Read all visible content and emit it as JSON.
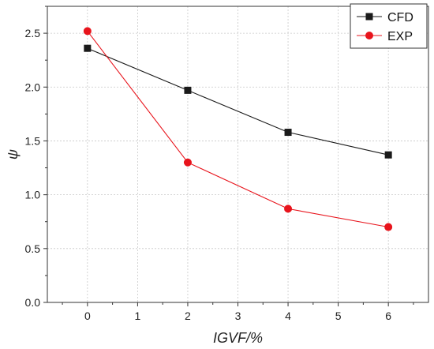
{
  "chart_data": {
    "type": "line",
    "xlabel": "IGVF/%",
    "ylabel": "ψ",
    "xlim": [
      -0.8,
      6.8
    ],
    "ylim": [
      0.0,
      2.75
    ],
    "x_ticks": [
      "0",
      "1",
      "2",
      "3",
      "4",
      "5",
      "6"
    ],
    "y_ticks": [
      "0.0",
      "0.5",
      "1.0",
      "1.5",
      "2.0",
      "2.5"
    ],
    "grid": true,
    "legend_position": "top-right",
    "series": [
      {
        "name": "CFD",
        "marker": "square",
        "color": "#1a1a1a",
        "x": [
          0,
          2,
          4,
          6
        ],
        "y": [
          2.36,
          1.97,
          1.58,
          1.37
        ]
      },
      {
        "name": "EXP",
        "marker": "circle",
        "color": "#e8141c",
        "x": [
          0,
          2,
          4,
          6
        ],
        "y": [
          2.52,
          1.3,
          0.87,
          0.7
        ]
      }
    ]
  }
}
